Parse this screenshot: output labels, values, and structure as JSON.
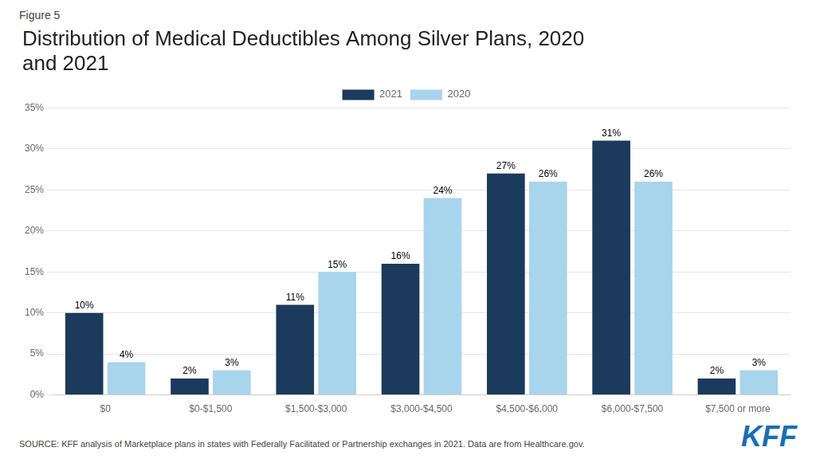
{
  "chart_data": {
    "type": "bar",
    "title": "Distribution of Medical Deductibles Among Silver Plans, 2020\nand 2021",
    "annotations": [
      "Figure 5",
      "SOURCE: KFF analysis of Marketplace plans in states with Federally Facilitated or Partnership exchanges in 2021. Data are from Healthcare.gov.",
      "KFF"
    ],
    "annotation_color": "#1a6faf",
    "categories": [
      "$0",
      "$0-$1,500",
      "$1,500-$3,000",
      "$3,000-$4,500",
      "$4,500-$6,000",
      "$6,000-$7,500",
      "$7,500 or more"
    ],
    "series": [
      {
        "name": "2021",
        "color": "#1b3a5c",
        "values": [
          10,
          2,
          11,
          16,
          27,
          31,
          2
        ],
        "value_labels": [
          "10%",
          "2%",
          "11%",
          "16%",
          "27%",
          "31%",
          "2%"
        ]
      },
      {
        "name": "2020",
        "color": "#a8d4ec",
        "values": [
          4,
          3,
          15,
          24,
          26,
          26,
          3
        ],
        "value_labels": [
          "4%",
          "3%",
          "15%",
          "24%",
          "26%",
          "26%",
          "3%"
        ]
      }
    ],
    "ylim": [
      0,
      35
    ],
    "yticks": [
      {
        "value": 0,
        "label": "0%"
      },
      {
        "value": 5,
        "label": "5%"
      },
      {
        "value": 10,
        "label": "10%"
      },
      {
        "value": 15,
        "label": "15%"
      },
      {
        "value": 20,
        "label": "20%"
      },
      {
        "value": 25,
        "label": "25%"
      },
      {
        "value": 30,
        "label": "30%"
      },
      {
        "value": 35,
        "label": "35%"
      }
    ],
    "grid": "y",
    "legend": "top",
    "data_labels": true
  }
}
